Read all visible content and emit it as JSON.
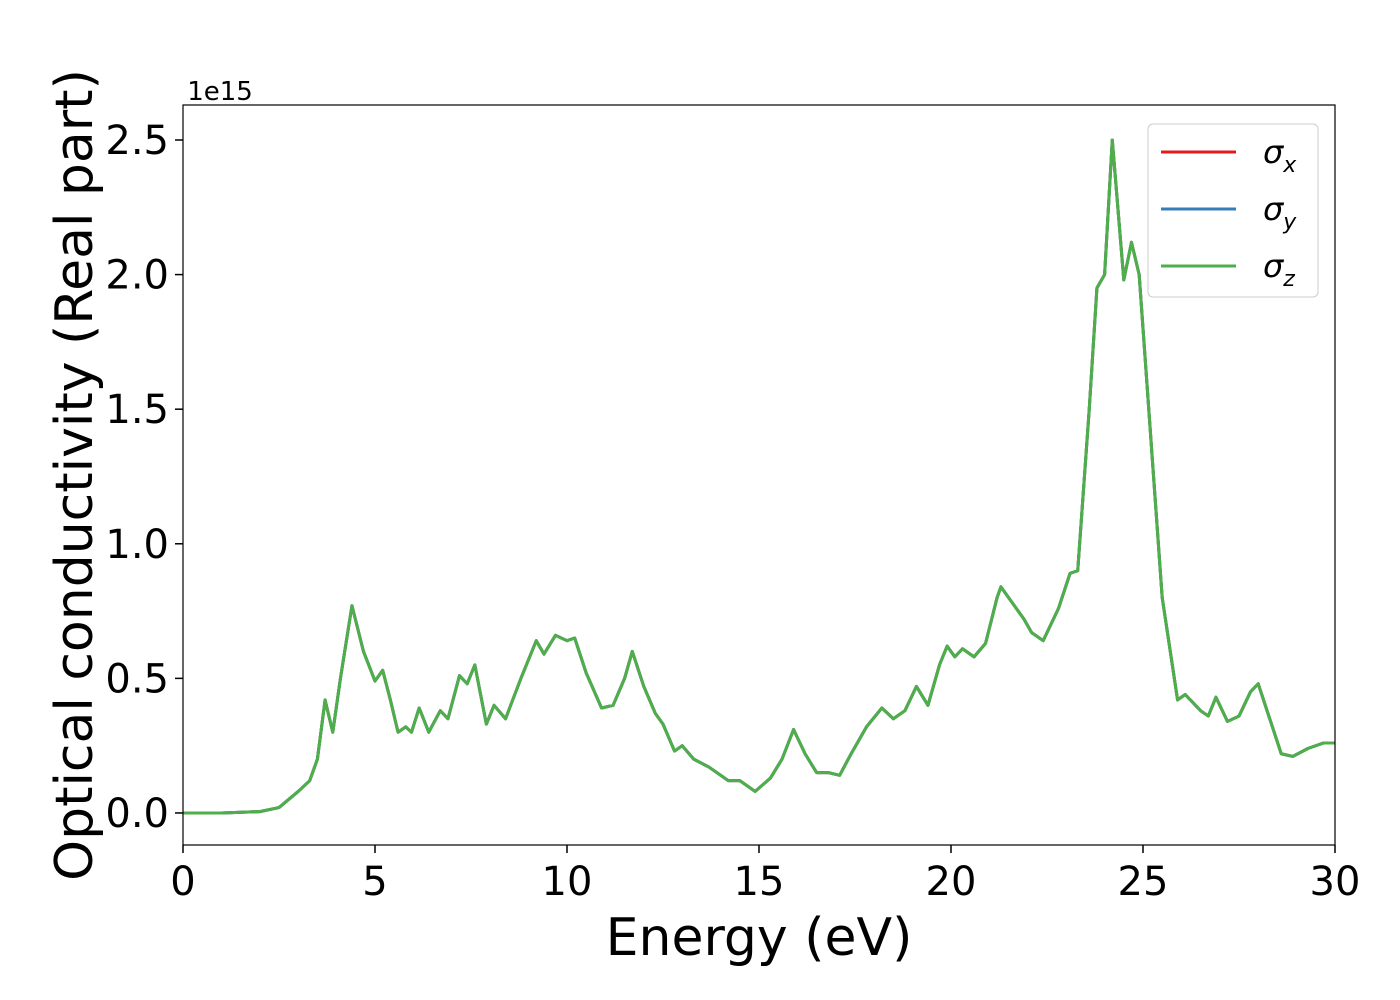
{
  "chart_data": {
    "type": "line",
    "xlabel": "Energy (eV)",
    "ylabel": "Optical conductivity (Real part)",
    "y_offset_label": "1e15",
    "xlim": [
      0,
      30
    ],
    "ylim": [
      -0.119,
      2.63
    ],
    "xticks": [
      0,
      5,
      10,
      15,
      20,
      25,
      30
    ],
    "yticks": [
      {
        "value": 0,
        "label": "0.0"
      },
      0.5,
      {
        "value": 1,
        "label": "1.0"
      },
      1.5,
      {
        "value": 2,
        "label": "2.0"
      },
      2.5
    ],
    "legend": "upper right",
    "x": [
      0,
      1,
      2,
      2.5,
      3,
      3.3,
      3.5,
      3.7,
      3.9,
      4.1,
      4.4,
      4.7,
      5.0,
      5.2,
      5.4,
      5.6,
      5.8,
      5.95,
      6.15,
      6.4,
      6.7,
      6.9,
      7.2,
      7.4,
      7.6,
      7.9,
      8.1,
      8.4,
      8.8,
      9.2,
      9.4,
      9.7,
      10.0,
      10.2,
      10.5,
      10.9,
      11.2,
      11.5,
      11.7,
      12.0,
      12.3,
      12.5,
      12.8,
      13.0,
      13.3,
      13.7,
      14.2,
      14.5,
      14.9,
      15.3,
      15.6,
      15.9,
      16.2,
      16.5,
      16.8,
      17.1,
      17.4,
      17.8,
      18.2,
      18.5,
      18.8,
      19.1,
      19.4,
      19.7,
      19.9,
      20.1,
      20.3,
      20.6,
      20.9,
      21.2,
      21.3,
      21.6,
      21.9,
      22.1,
      22.4,
      22.8,
      23.1,
      23.3,
      23.6,
      23.8,
      24.0,
      24.2,
      24.5,
      24.7,
      24.9,
      25.2,
      25.5,
      25.9,
      26.1,
      26.5,
      26.7,
      26.9,
      27.2,
      27.5,
      27.8,
      28.0,
      28.3,
      28.6,
      28.9,
      29.3,
      29.7,
      30
    ],
    "series": [
      {
        "name": "σx",
        "color": "#e41a1c",
        "values": [
          0,
          0,
          0.005,
          0.02,
          0.08,
          0.12,
          0.2,
          0.42,
          0.3,
          0.5,
          0.77,
          0.6,
          0.49,
          0.53,
          0.42,
          0.3,
          0.32,
          0.3,
          0.39,
          0.3,
          0.38,
          0.35,
          0.51,
          0.48,
          0.55,
          0.33,
          0.4,
          0.35,
          0.5,
          0.64,
          0.59,
          0.66,
          0.64,
          0.65,
          0.52,
          0.39,
          0.4,
          0.5,
          0.6,
          0.47,
          0.37,
          0.33,
          0.23,
          0.25,
          0.2,
          0.17,
          0.12,
          0.12,
          0.08,
          0.13,
          0.2,
          0.31,
          0.22,
          0.15,
          0.15,
          0.14,
          0.22,
          0.32,
          0.39,
          0.35,
          0.38,
          0.47,
          0.4,
          0.55,
          0.62,
          0.58,
          0.61,
          0.58,
          0.63,
          0.8,
          0.84,
          0.78,
          0.72,
          0.67,
          0.64,
          0.76,
          0.89,
          0.9,
          1.5,
          1.95,
          2.0,
          2.5,
          1.98,
          2.12,
          2.0,
          1.4,
          0.8,
          0.42,
          0.44,
          0.38,
          0.36,
          0.43,
          0.34,
          0.36,
          0.45,
          0.48,
          0.35,
          0.22,
          0.21,
          0.24,
          0.26,
          0.26
        ]
      },
      {
        "name": "σy",
        "color": "#377eb8",
        "values": [
          0,
          0,
          0.005,
          0.02,
          0.08,
          0.12,
          0.2,
          0.42,
          0.3,
          0.5,
          0.77,
          0.6,
          0.49,
          0.53,
          0.42,
          0.3,
          0.32,
          0.3,
          0.39,
          0.3,
          0.38,
          0.35,
          0.51,
          0.48,
          0.55,
          0.33,
          0.4,
          0.35,
          0.5,
          0.64,
          0.59,
          0.66,
          0.64,
          0.65,
          0.52,
          0.39,
          0.4,
          0.5,
          0.6,
          0.47,
          0.37,
          0.33,
          0.23,
          0.25,
          0.2,
          0.17,
          0.12,
          0.12,
          0.08,
          0.13,
          0.2,
          0.31,
          0.22,
          0.15,
          0.15,
          0.14,
          0.22,
          0.32,
          0.39,
          0.35,
          0.38,
          0.47,
          0.4,
          0.55,
          0.62,
          0.58,
          0.61,
          0.58,
          0.63,
          0.8,
          0.84,
          0.78,
          0.72,
          0.67,
          0.64,
          0.76,
          0.89,
          0.9,
          1.5,
          1.95,
          2.0,
          2.5,
          1.98,
          2.12,
          2.0,
          1.4,
          0.8,
          0.42,
          0.44,
          0.38,
          0.36,
          0.43,
          0.34,
          0.36,
          0.45,
          0.48,
          0.35,
          0.22,
          0.21,
          0.24,
          0.26,
          0.26
        ]
      },
      {
        "name": "σz",
        "color": "#4daf4a",
        "values": [
          0,
          0,
          0.005,
          0.02,
          0.08,
          0.12,
          0.2,
          0.42,
          0.3,
          0.5,
          0.77,
          0.6,
          0.49,
          0.53,
          0.42,
          0.3,
          0.32,
          0.3,
          0.39,
          0.3,
          0.38,
          0.35,
          0.51,
          0.48,
          0.55,
          0.33,
          0.4,
          0.35,
          0.5,
          0.64,
          0.59,
          0.66,
          0.64,
          0.65,
          0.52,
          0.39,
          0.4,
          0.5,
          0.6,
          0.47,
          0.37,
          0.33,
          0.23,
          0.25,
          0.2,
          0.17,
          0.12,
          0.12,
          0.08,
          0.13,
          0.2,
          0.31,
          0.22,
          0.15,
          0.15,
          0.14,
          0.22,
          0.32,
          0.39,
          0.35,
          0.38,
          0.47,
          0.4,
          0.55,
          0.62,
          0.58,
          0.61,
          0.58,
          0.63,
          0.8,
          0.84,
          0.78,
          0.72,
          0.67,
          0.64,
          0.76,
          0.89,
          0.9,
          1.5,
          1.95,
          2.0,
          2.5,
          1.98,
          2.12,
          2.0,
          1.4,
          0.8,
          0.42,
          0.44,
          0.38,
          0.36,
          0.43,
          0.34,
          0.36,
          0.45,
          0.48,
          0.35,
          0.22,
          0.21,
          0.24,
          0.26,
          0.26
        ]
      }
    ]
  }
}
